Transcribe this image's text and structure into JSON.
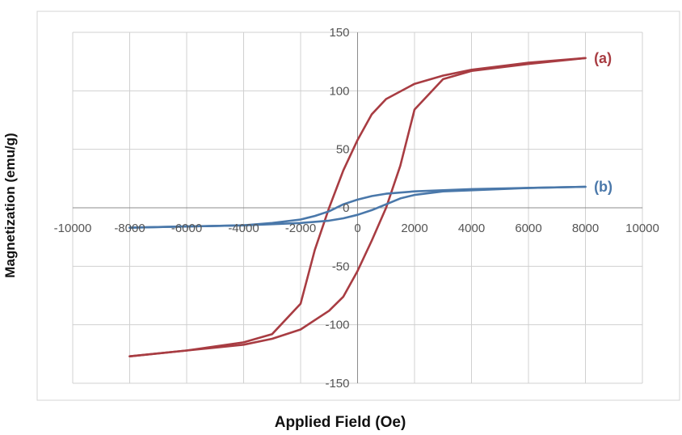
{
  "chart_data": {
    "type": "line",
    "title": "",
    "xlabel": "Applied Field (Oe)",
    "ylabel": "Magnetization (emu/g)",
    "xlim": [
      -10000,
      10000
    ],
    "ylim": [
      -150,
      150
    ],
    "x_ticks": [
      -10000,
      -8000,
      -6000,
      -4000,
      -2000,
      0,
      2000,
      4000,
      6000,
      8000,
      10000
    ],
    "y_ticks": [
      150,
      100,
      50,
      0,
      -50,
      -100,
      -150
    ],
    "x_tick_labels": [
      "-10000",
      "-8000",
      "-6000",
      "-4000",
      "-2000",
      "0",
      "2000",
      "4000",
      "6000",
      "8000",
      "10000"
    ],
    "y_tick_labels": [
      "150",
      "100",
      "50",
      "0",
      "-50",
      "-100",
      "-150"
    ],
    "grid": true,
    "legend": "none",
    "series": [
      {
        "name": "(a)",
        "color": "#a83c42",
        "branches": [
          {
            "x": [
              8000,
              6000,
              4000,
              3000,
              2000,
              1000,
              500,
              0,
              -500,
              -1000,
              -1500,
              -2000,
              -3000,
              -4000,
              -6000,
              -8000
            ],
            "y": [
              128,
              124,
              118,
              113,
              106,
              93,
              80,
              58,
              32,
              0,
              -36,
              -82,
              -108,
              -115,
              -122,
              -127
            ]
          },
          {
            "x": [
              -8000,
              -6000,
              -4000,
              -3000,
              -2000,
              -1000,
              -500,
              0,
              500,
              1000,
              1500,
              2000,
              3000,
              4000,
              6000,
              8000
            ],
            "y": [
              -127,
              -122,
              -117,
              -112,
              -104,
              -88,
              -76,
              -54,
              -28,
              0,
              36,
              84,
              110,
              117,
              123,
              128
            ]
          }
        ]
      },
      {
        "name": "(b)",
        "color": "#4a78aa",
        "branches": [
          {
            "x": [
              8000,
              6000,
              4000,
              2000,
              1000,
              500,
              0,
              -500,
              -1000,
              -1500,
              -2000,
              -3000,
              -4000,
              -6000,
              -8000
            ],
            "y": [
              18,
              17,
              16,
              14,
              12,
              10,
              7,
              3,
              -3,
              -7,
              -10,
              -13,
              -15,
              -16,
              -17
            ]
          },
          {
            "x": [
              -8000,
              -6000,
              -4000,
              -2000,
              -1000,
              -500,
              0,
              500,
              1000,
              1500,
              2000,
              3000,
              4000,
              6000,
              8000
            ],
            "y": [
              -17,
              -16,
              -15,
              -13,
              -11,
              -9,
              -6,
              -2,
              3,
              8,
              11,
              14,
              15,
              17,
              18
            ]
          }
        ]
      }
    ],
    "annotations": [
      {
        "text": "(a)",
        "series": 0,
        "x": 8300,
        "y": 128
      },
      {
        "text": "(b)",
        "series": 1,
        "x": 8300,
        "y": 18
      }
    ]
  }
}
